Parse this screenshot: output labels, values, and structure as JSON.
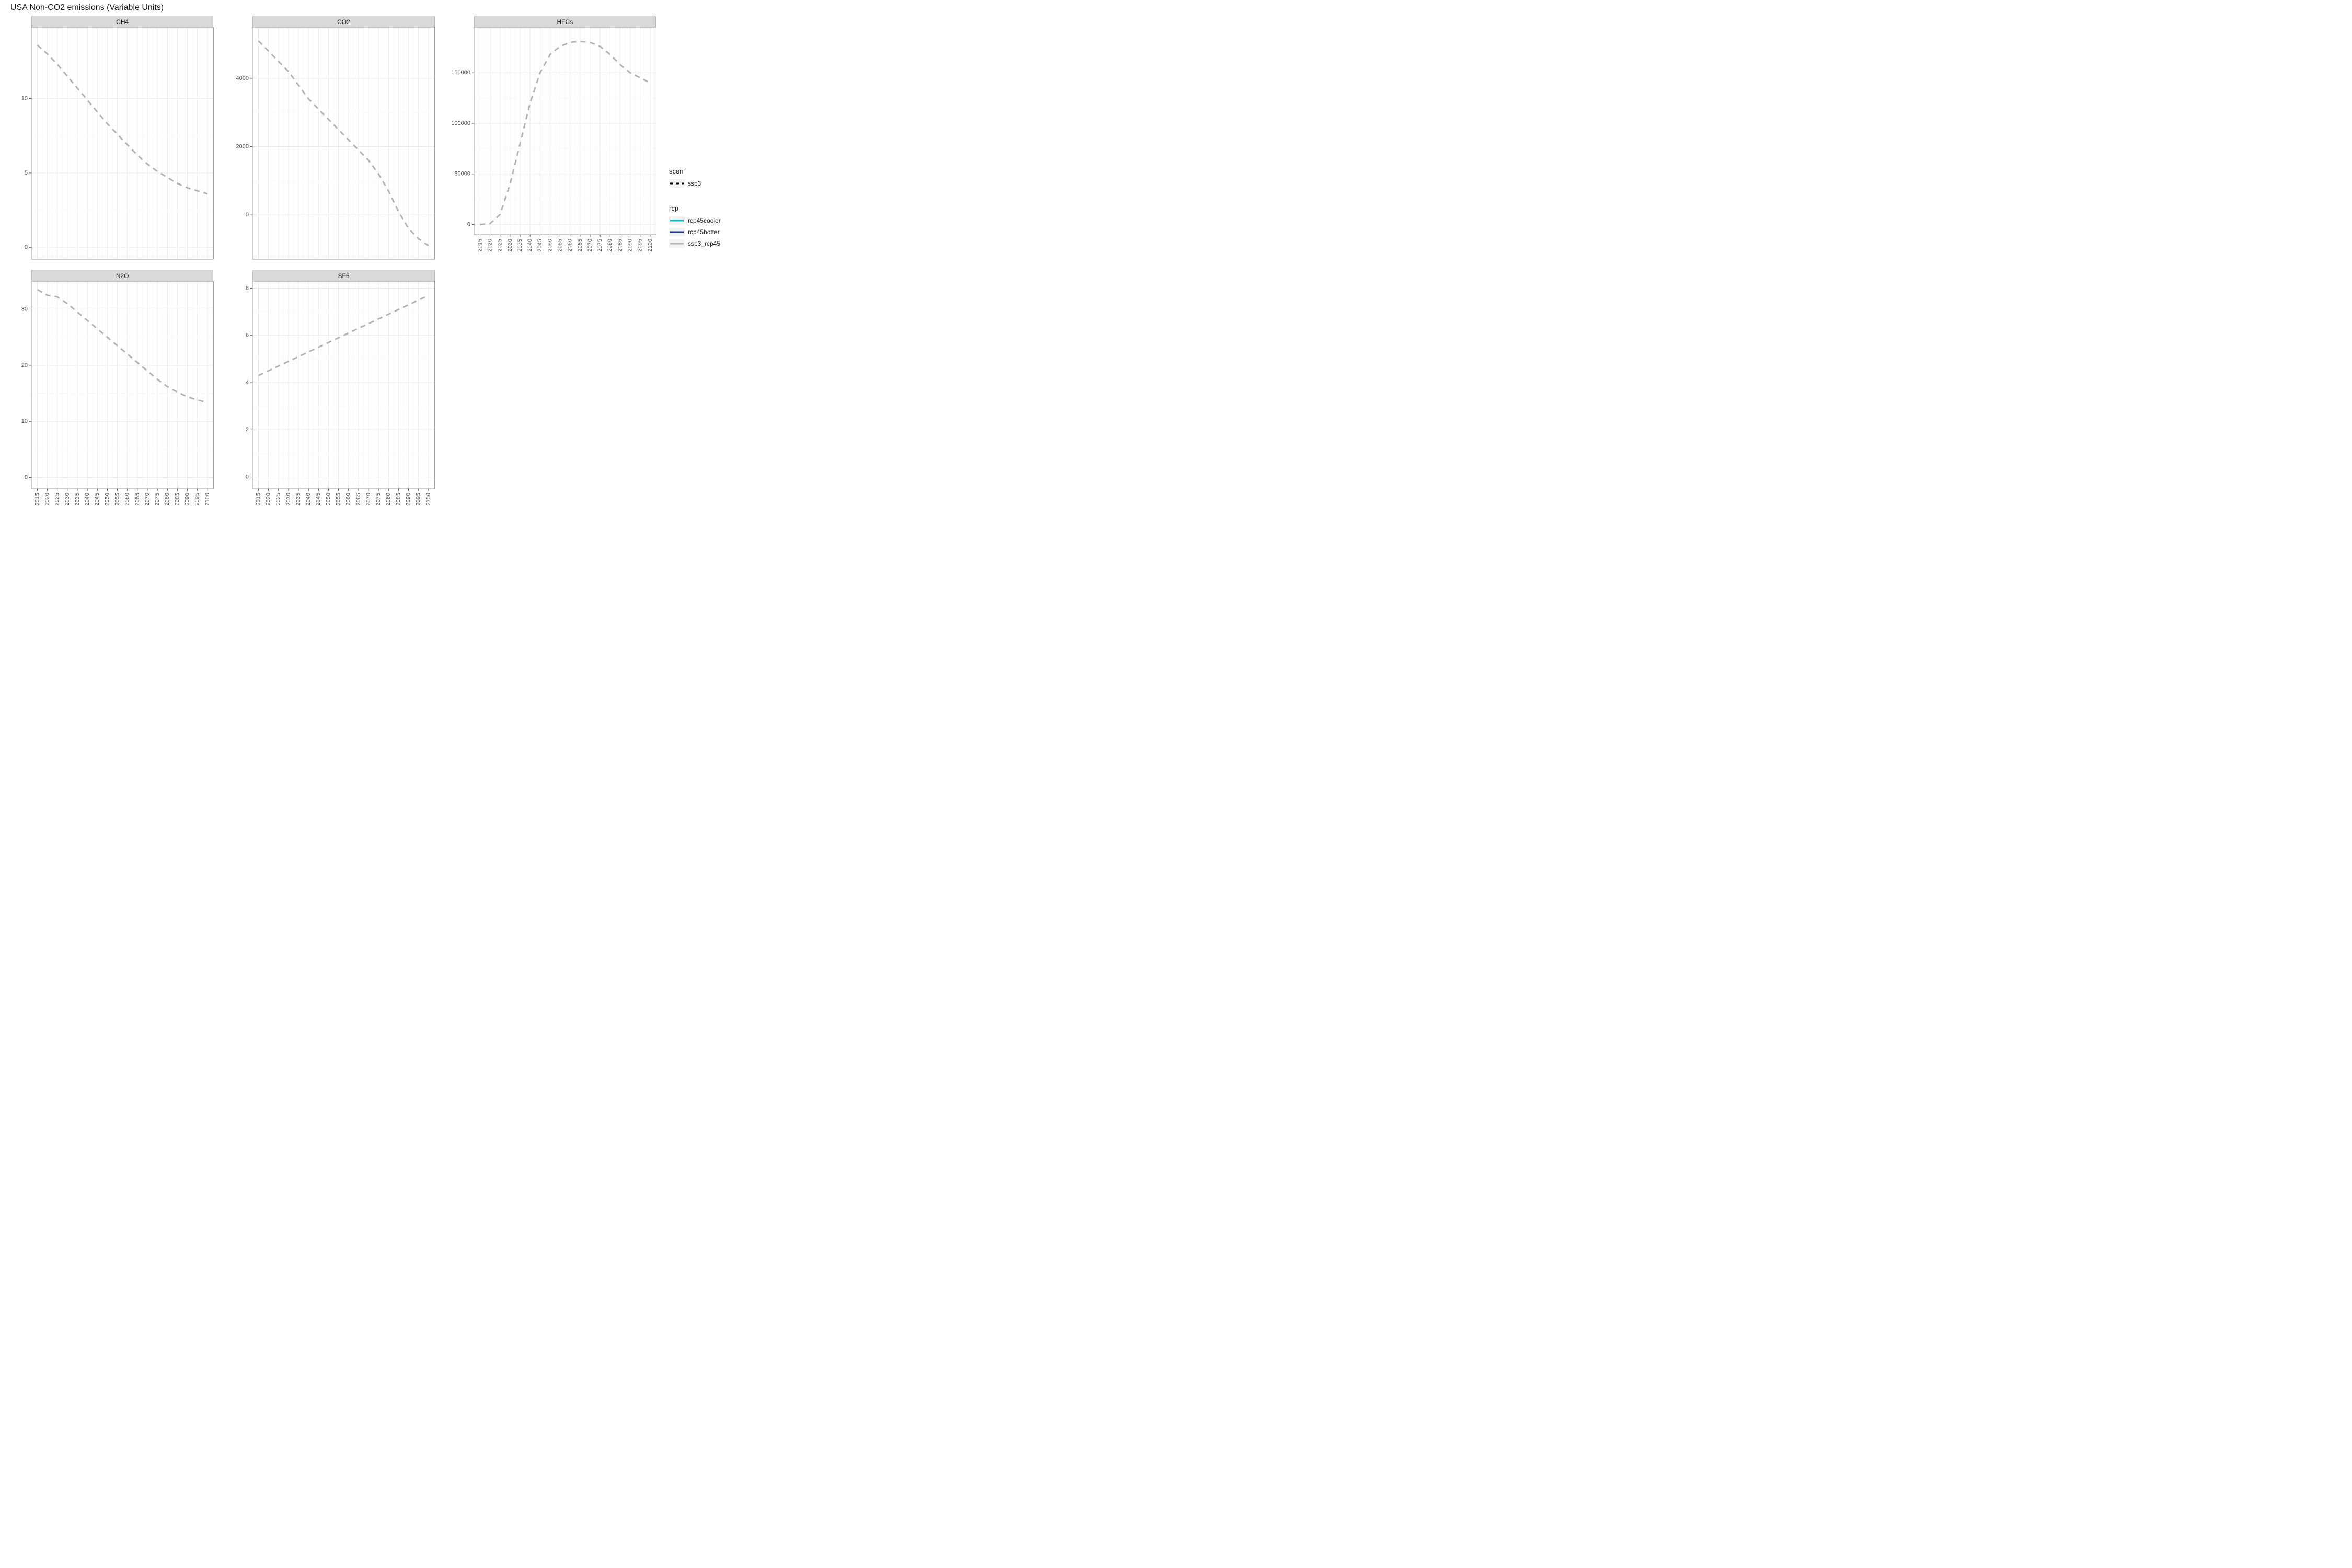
{
  "title": "USA Non-CO2 emissions (Variable Units)",
  "background_color": "#ffffff",
  "panel_bg": "#ffffff",
  "panel_border": "#7f7f7f",
  "strip_bg": "#d9d9d9",
  "gridline_major": "#ebebeb",
  "gridline_minor": "#f5f5f5",
  "axis_text_color": "#4d4d4d",
  "axis_text_size": 11,
  "strip_text_size": 12,
  "title_size": 16,
  "line_color_ssp3": "#b3b3b3",
  "line_color_rcp45cooler": "#00bfc4",
  "line_color_rcp45hotter": "#1f3b8c",
  "line_dash": "10,8",
  "line_width": 3,
  "x_axis": {
    "ticks": [
      2015,
      2020,
      2025,
      2030,
      2035,
      2040,
      2045,
      2050,
      2055,
      2060,
      2065,
      2070,
      2075,
      2080,
      2085,
      2090,
      2095,
      2100
    ],
    "xlim": [
      2012,
      2103
    ],
    "tick_label_rotation": -90
  },
  "panels": [
    {
      "name": "CH4",
      "show_x_axis": false,
      "ylim": [
        -0.8,
        14.8
      ],
      "yticks": [
        0,
        5,
        10
      ],
      "series": [
        {
          "x": 2015,
          "y": 13.6
        },
        {
          "x": 2020,
          "y": 13.0
        },
        {
          "x": 2025,
          "y": 12.3
        },
        {
          "x": 2030,
          "y": 11.5
        },
        {
          "x": 2035,
          "y": 10.7
        },
        {
          "x": 2040,
          "y": 9.9
        },
        {
          "x": 2045,
          "y": 9.1
        },
        {
          "x": 2050,
          "y": 8.3
        },
        {
          "x": 2055,
          "y": 7.6
        },
        {
          "x": 2060,
          "y": 6.9
        },
        {
          "x": 2065,
          "y": 6.2
        },
        {
          "x": 2070,
          "y": 5.6
        },
        {
          "x": 2075,
          "y": 5.1
        },
        {
          "x": 2080,
          "y": 4.7
        },
        {
          "x": 2085,
          "y": 4.3
        },
        {
          "x": 2090,
          "y": 4.0
        },
        {
          "x": 2095,
          "y": 3.8
        },
        {
          "x": 2100,
          "y": 3.6
        }
      ]
    },
    {
      "name": "CO2",
      "show_x_axis": false,
      "ylim": [
        -1300,
        5500
      ],
      "yticks": [
        0,
        2000,
        4000
      ],
      "series": [
        {
          "x": 2015,
          "y": 5100
        },
        {
          "x": 2020,
          "y": 4800
        },
        {
          "x": 2025,
          "y": 4500
        },
        {
          "x": 2030,
          "y": 4200
        },
        {
          "x": 2035,
          "y": 3800
        },
        {
          "x": 2040,
          "y": 3400
        },
        {
          "x": 2045,
          "y": 3100
        },
        {
          "x": 2050,
          "y": 2800
        },
        {
          "x": 2055,
          "y": 2500
        },
        {
          "x": 2060,
          "y": 2200
        },
        {
          "x": 2065,
          "y": 1900
        },
        {
          "x": 2070,
          "y": 1600
        },
        {
          "x": 2075,
          "y": 1200
        },
        {
          "x": 2080,
          "y": 700
        },
        {
          "x": 2085,
          "y": 100
        },
        {
          "x": 2090,
          "y": -400
        },
        {
          "x": 2095,
          "y": -700
        },
        {
          "x": 2100,
          "y": -900
        }
      ]
    },
    {
      "name": "HFCs",
      "show_x_axis": true,
      "ylim": [
        -10000,
        195000
      ],
      "yticks": [
        0,
        50000,
        100000,
        150000
      ],
      "series": [
        {
          "x": 2015,
          "y": 0
        },
        {
          "x": 2020,
          "y": 1000
        },
        {
          "x": 2025,
          "y": 10000
        },
        {
          "x": 2030,
          "y": 40000
        },
        {
          "x": 2035,
          "y": 80000
        },
        {
          "x": 2040,
          "y": 120000
        },
        {
          "x": 2045,
          "y": 150000
        },
        {
          "x": 2050,
          "y": 168000
        },
        {
          "x": 2055,
          "y": 176000
        },
        {
          "x": 2060,
          "y": 180000
        },
        {
          "x": 2065,
          "y": 181000
        },
        {
          "x": 2070,
          "y": 180000
        },
        {
          "x": 2075,
          "y": 176000
        },
        {
          "x": 2080,
          "y": 168000
        },
        {
          "x": 2085,
          "y": 158000
        },
        {
          "x": 2090,
          "y": 150000
        },
        {
          "x": 2095,
          "y": 145000
        },
        {
          "x": 2100,
          "y": 140000
        }
      ]
    },
    {
      "name": "N2O",
      "show_x_axis": true,
      "ylim": [
        -2,
        35
      ],
      "yticks": [
        0,
        10,
        20,
        30
      ],
      "series": [
        {
          "x": 2015,
          "y": 33.5
        },
        {
          "x": 2020,
          "y": 32.5
        },
        {
          "x": 2025,
          "y": 32.2
        },
        {
          "x": 2030,
          "y": 31.0
        },
        {
          "x": 2035,
          "y": 29.5
        },
        {
          "x": 2040,
          "y": 28.0
        },
        {
          "x": 2045,
          "y": 26.5
        },
        {
          "x": 2050,
          "y": 25.0
        },
        {
          "x": 2055,
          "y": 23.5
        },
        {
          "x": 2060,
          "y": 22.0
        },
        {
          "x": 2065,
          "y": 20.5
        },
        {
          "x": 2070,
          "y": 19.0
        },
        {
          "x": 2075,
          "y": 17.5
        },
        {
          "x": 2080,
          "y": 16.2
        },
        {
          "x": 2085,
          "y": 15.2
        },
        {
          "x": 2090,
          "y": 14.4
        },
        {
          "x": 2095,
          "y": 13.8
        },
        {
          "x": 2100,
          "y": 13.4
        }
      ]
    },
    {
      "name": "SF6",
      "show_x_axis": true,
      "ylim": [
        -0.5,
        8.3
      ],
      "yticks": [
        0,
        2,
        4,
        6,
        8
      ],
      "series": [
        {
          "x": 2015,
          "y": 4.3
        },
        {
          "x": 2020,
          "y": 4.5
        },
        {
          "x": 2025,
          "y": 4.7
        },
        {
          "x": 2030,
          "y": 4.9
        },
        {
          "x": 2035,
          "y": 5.1
        },
        {
          "x": 2040,
          "y": 5.3
        },
        {
          "x": 2045,
          "y": 5.5
        },
        {
          "x": 2050,
          "y": 5.7
        },
        {
          "x": 2055,
          "y": 5.9
        },
        {
          "x": 2060,
          "y": 6.1
        },
        {
          "x": 2065,
          "y": 6.3
        },
        {
          "x": 2070,
          "y": 6.5
        },
        {
          "x": 2075,
          "y": 6.7
        },
        {
          "x": 2080,
          "y": 6.9
        },
        {
          "x": 2085,
          "y": 7.1
        },
        {
          "x": 2090,
          "y": 7.3
        },
        {
          "x": 2095,
          "y": 7.5
        },
        {
          "x": 2100,
          "y": 7.7
        }
      ]
    }
  ],
  "legend": {
    "scen": {
      "title": "scen",
      "items": [
        {
          "label": "ssp3",
          "color": "#000000",
          "dash": "6,5"
        }
      ]
    },
    "rcp": {
      "title": "rcp",
      "items": [
        {
          "label": "rcp45cooler",
          "color": "#00bfc4",
          "dash": null
        },
        {
          "label": "rcp45hotter",
          "color": "#1f3b8c",
          "dash": null
        },
        {
          "label": "ssp3_rcp45",
          "color": "#b3b3b3",
          "dash": null
        }
      ]
    }
  }
}
